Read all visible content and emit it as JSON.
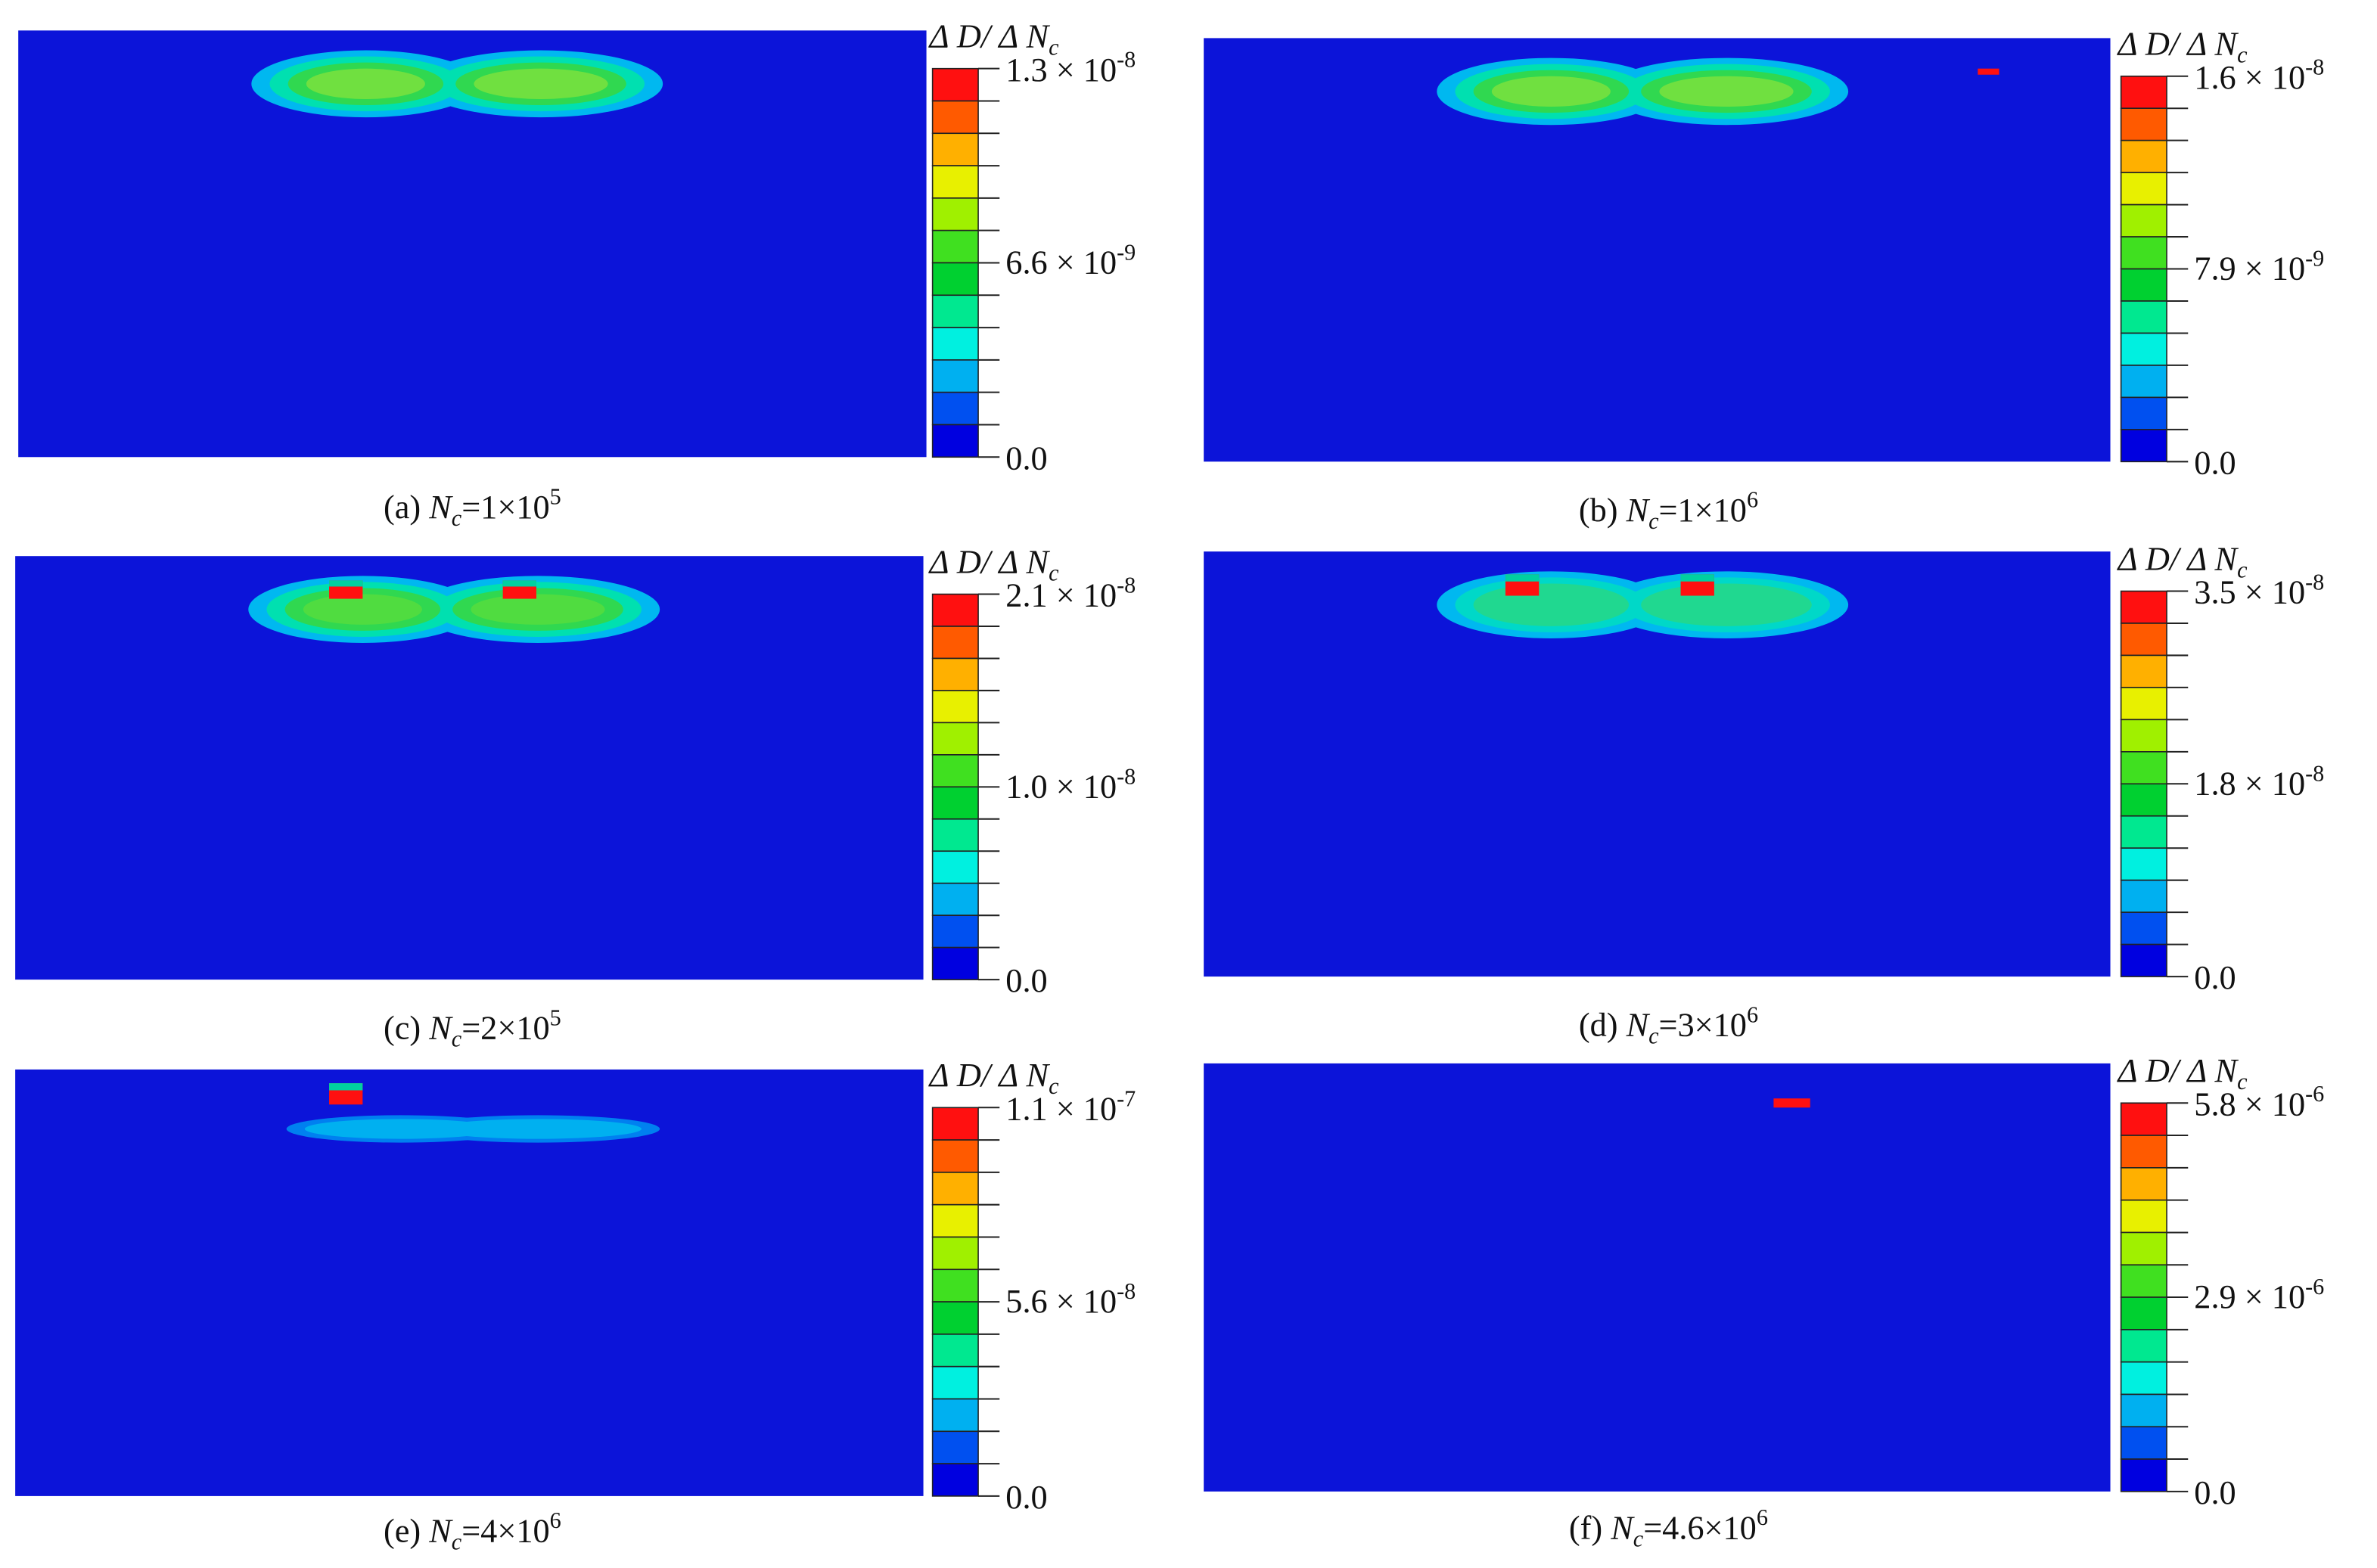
{
  "panels": [
    {
      "caption": {
        "letter": "(a) ",
        "symbol": "N",
        "subscript": "c",
        "equals": "=1×10",
        "exponent": "5"
      },
      "colorbar": {
        "title": {
          "symbol": "Δ D/ Δ N",
          "subscript": "c"
        },
        "labels": [
          {
            "mantissa": "1.3 × 10",
            "exponent": "-8"
          },
          {
            "mantissa": "6.6 × 10",
            "exponent": "-9"
          },
          {
            "mantissa": "0.0"
          }
        ]
      }
    },
    {
      "caption": {
        "letter": "(b) ",
        "symbol": "N",
        "subscript": "c",
        "equals": "=1×10",
        "exponent": "6"
      },
      "colorbar": {
        "title": {
          "symbol": "Δ D/ Δ N",
          "subscript": "c"
        },
        "labels": [
          {
            "mantissa": "1.6 × 10",
            "exponent": "-8"
          },
          {
            "mantissa": "7.9 × 10",
            "exponent": "-9"
          },
          {
            "mantissa": "0.0"
          }
        ]
      }
    },
    {
      "caption": {
        "letter": "(c) ",
        "symbol": "N",
        "subscript": "c",
        "equals": "=2×10",
        "exponent": "5"
      },
      "colorbar": {
        "title": {
          "symbol": "Δ D/ Δ N",
          "subscript": "c"
        },
        "labels": [
          {
            "mantissa": "2.1 × 10",
            "exponent": "-8"
          },
          {
            "mantissa": "1.0 × 10",
            "exponent": "-8"
          },
          {
            "mantissa": "0.0"
          }
        ]
      }
    },
    {
      "caption": {
        "letter": "(d) ",
        "symbol": "N",
        "subscript": "c",
        "equals": "=3×10",
        "exponent": "6"
      },
      "colorbar": {
        "title": {
          "symbol": "Δ D/ Δ N",
          "subscript": "c"
        },
        "labels": [
          {
            "mantissa": "3.5 × 10",
            "exponent": "-8"
          },
          {
            "mantissa": "1.8 × 10",
            "exponent": "-8"
          },
          {
            "mantissa": "0.0"
          }
        ]
      }
    },
    {
      "caption": {
        "letter": "(e) ",
        "symbol": "N",
        "subscript": "c",
        "equals": "=4×10",
        "exponent": "6"
      },
      "colorbar": {
        "title": {
          "symbol": "Δ D/ Δ N",
          "subscript": "c"
        },
        "labels": [
          {
            "mantissa": "1.1 × 10",
            "exponent": "-7"
          },
          {
            "mantissa": "5.6 × 10",
            "exponent": "-8"
          },
          {
            "mantissa": "0.0"
          }
        ]
      }
    },
    {
      "caption": {
        "letter": "(f) ",
        "symbol": "N",
        "subscript": "c",
        "equals": "=4.6×10",
        "exponent": "6"
      },
      "colorbar": {
        "title": {
          "symbol": "Δ D/ Δ N",
          "subscript": "c"
        },
        "labels": [
          {
            "mantissa": "5.8 × 10",
            "exponent": "-6"
          },
          {
            "mantissa": "2.9 × 10",
            "exponent": "-6"
          },
          {
            "mantissa": "0.0"
          }
        ]
      }
    }
  ],
  "colorbar_colors": [
    "#ff1010",
    "#ff5a00",
    "#ffb000",
    "#e8f000",
    "#a0f000",
    "#40e020",
    "#00d030",
    "#00e890",
    "#00f0e0",
    "#00b0f0",
    "#0050f0",
    "#0000e0"
  ],
  "field_color": "#0c14d9"
}
